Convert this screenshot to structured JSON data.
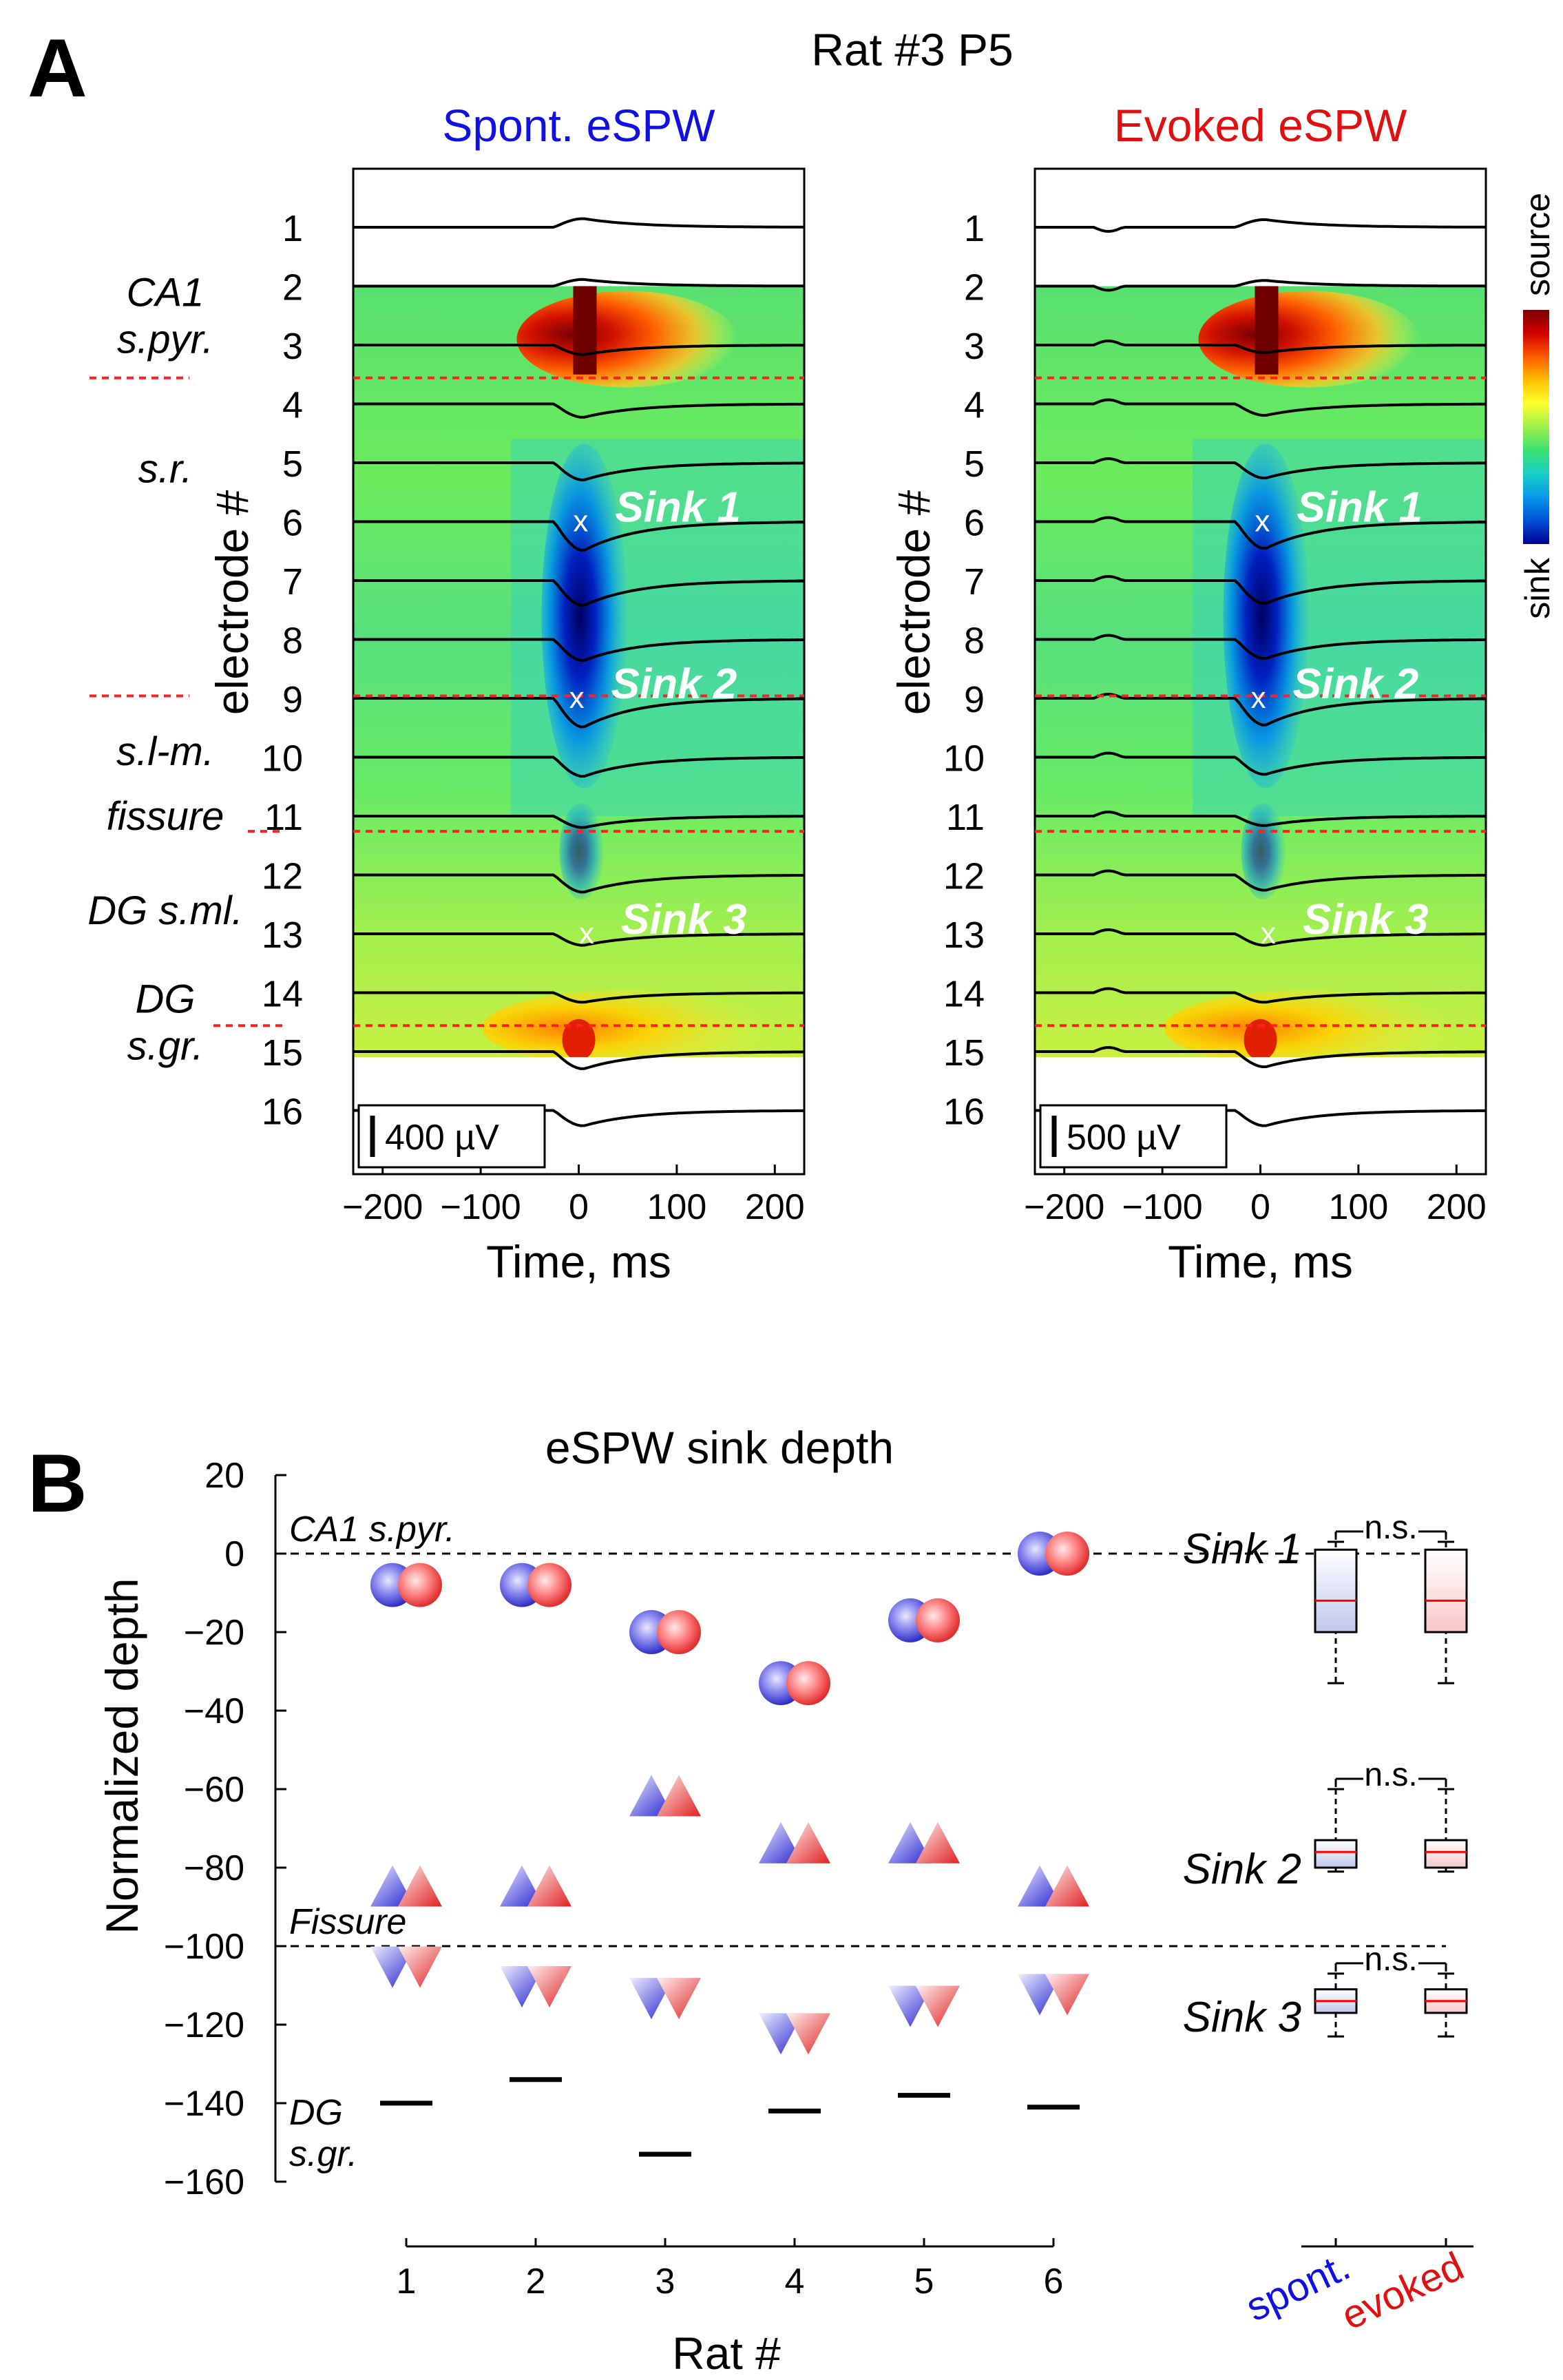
{
  "panel_a": {
    "letter": "A",
    "title": "Rat #3 P5",
    "time_label": "Time, ms",
    "y_label": "electrode #",
    "colorbar": {
      "top_label": "source",
      "bottom_label": "sink",
      "colors": [
        "#7a0000",
        "#d00000",
        "#ff5a00",
        "#ffc000",
        "#ffff30",
        "#9cf04c",
        "#3ce070",
        "#18d0c8",
        "#0898e8",
        "#0050d8",
        "#000090"
      ]
    },
    "layer_labels": [
      {
        "key": "ca1",
        "lines": [
          "CA1",
          "s.pyr."
        ],
        "electrode": 2.5
      },
      {
        "key": "sr",
        "lines": [
          "s.r."
        ],
        "electrode": 5.1
      },
      {
        "key": "slm",
        "lines": [
          "s.l-m."
        ],
        "electrode": 9.9
      },
      {
        "key": "fissure",
        "lines": [
          "fissure"
        ],
        "electrode": 11.0
      },
      {
        "key": "dgsml",
        "lines": [
          "DG s.ml."
        ],
        "electrode": 12.6
      },
      {
        "key": "dgsgr",
        "lines": [
          "DG",
          "s.gr."
        ],
        "electrode": 14.5
      }
    ],
    "boundaries": [
      3.5,
      8.9,
      11.2,
      14.5
    ],
    "electrodes": [
      "1",
      "2",
      "3",
      "4",
      "5",
      "6",
      "7",
      "8",
      "9",
      "10",
      "11",
      "12",
      "13",
      "14",
      "15",
      "16"
    ],
    "xticks": [
      -200,
      -100,
      0,
      100,
      200
    ],
    "xtick_labels": [
      "−200",
      "−100",
      "0",
      "100",
      "200"
    ],
    "xlim": [
      -230,
      230
    ],
    "sinks": [
      {
        "label": "Sink 1",
        "electrode": 6
      },
      {
        "label": "Sink 2",
        "electrode": 9
      },
      {
        "label": "Sink 3",
        "electrode": 13
      }
    ],
    "plots": [
      {
        "key": "spont",
        "title": "Spont. eSPW",
        "title_color": "#1010e0",
        "scale": "400 µV",
        "sink_times": [
          2,
          -2,
          8
        ],
        "amplitudes": [
          0.45,
          0.35,
          -0.5,
          -0.7,
          -0.9,
          -1.5,
          -1.3,
          -1.1,
          -1.5,
          -1.0,
          -0.6,
          -0.9,
          -0.6,
          -0.5,
          -0.9,
          -0.8
        ]
      },
      {
        "key": "evoked",
        "title": "Evoked eSPW",
        "title_color": "#e01010",
        "scale": "500 µV",
        "sink_times": [
          2,
          -2,
          8
        ],
        "amplitudes": [
          0.4,
          0.3,
          -0.4,
          -0.6,
          -0.8,
          -1.4,
          -1.2,
          -1.0,
          -1.4,
          -0.9,
          -0.5,
          -0.8,
          -0.6,
          -0.5,
          -0.8,
          -0.8
        ]
      }
    ]
  },
  "panel_b": {
    "letter": "B",
    "title": "eSPW sink depth",
    "ylabel": "Normalized depth",
    "xlabel": "Rat #",
    "ylim": [
      -160,
      20
    ],
    "yticks": [
      20,
      0,
      -20,
      -40,
      -60,
      -80,
      -100,
      -120,
      -140,
      -160
    ],
    "ytick_labels": [
      "20",
      "0",
      "−20",
      "−40",
      "−60",
      "−80",
      "−100",
      "−120",
      "−140",
      "−160"
    ],
    "rats": [
      "1",
      "2",
      "3",
      "4",
      "5",
      "6"
    ],
    "ref_lines": [
      {
        "label": "CA1 s.pyr.",
        "value": 0
      },
      {
        "label": "Fissure",
        "value": -100
      }
    ],
    "dg_label": [
      "DG",
      "s.gr."
    ],
    "sink1": [
      -8,
      -8,
      -20,
      -33,
      -17,
      0
    ],
    "sink2": [
      -85,
      -85,
      -62,
      -74,
      -74,
      -85
    ],
    "sink3": [
      -105,
      -110,
      -113,
      -122,
      -115,
      -112
    ],
    "dg_sgr": [
      -140,
      -134,
      -153,
      -142,
      -138,
      -141
    ],
    "sink_labels": [
      "Sink 1",
      "Sink 2",
      "Sink 3"
    ],
    "ns_label": "n.s.",
    "group_labels": {
      "spont": "spont.",
      "evoked": "evoked"
    },
    "group_colors": {
      "spont": "#1010e0",
      "evoked": "#e01010"
    },
    "boxes": {
      "sink1": {
        "spont": {
          "whislo": -33,
          "q1": -20,
          "med": -12,
          "q3": 1,
          "whishi": 3
        },
        "evoked": {
          "whislo": -33,
          "q1": -20,
          "med": -12,
          "q3": 1,
          "whishi": 3
        }
      },
      "sink2": {
        "spont": {
          "whislo": -81,
          "q1": -80,
          "med": -76,
          "q3": -73,
          "whishi": -60
        },
        "evoked": {
          "whislo": -81,
          "q1": -80,
          "med": -76,
          "q3": -73,
          "whishi": -60
        }
      },
      "sink3": {
        "spont": {
          "whislo": -123,
          "q1": -117,
          "med": -114,
          "q3": -111,
          "whishi": -107
        },
        "evoked": {
          "whislo": -123,
          "q1": -117,
          "med": -114,
          "q3": -111,
          "whishi": -107
        }
      }
    }
  },
  "chart_data": [
    {
      "type": "heatmap",
      "title": "Spont. eSPW",
      "xlabel": "Time, ms",
      "ylabel": "electrode #",
      "xlim": [
        -230,
        230
      ],
      "electrodes": [
        1,
        16
      ],
      "sinks": [
        {
          "name": "Sink 1",
          "electrode": 6,
          "time_ms": 2
        },
        {
          "name": "Sink 2",
          "electrode": 9,
          "time_ms": -2
        },
        {
          "name": "Sink 3",
          "electrode": 13,
          "time_ms": 8
        }
      ],
      "scale_bar": "400 µV"
    },
    {
      "type": "heatmap",
      "title": "Evoked eSPW",
      "xlabel": "Time, ms",
      "ylabel": "electrode #",
      "xlim": [
        -230,
        230
      ],
      "electrodes": [
        1,
        16
      ],
      "sinks": [
        {
          "name": "Sink 1",
          "electrode": 6,
          "time_ms": 2
        },
        {
          "name": "Sink 2",
          "electrode": 9,
          "time_ms": -2
        },
        {
          "name": "Sink 3",
          "electrode": 13,
          "time_ms": 8
        }
      ],
      "scale_bar": "500 µV"
    },
    {
      "type": "scatter",
      "title": "eSPW sink depth",
      "xlabel": "Rat #",
      "ylabel": "Normalized depth",
      "ylim": [
        -160,
        20
      ],
      "categories": [
        "1",
        "2",
        "3",
        "4",
        "5",
        "6"
      ],
      "series": [
        {
          "name": "Sink 1",
          "values": [
            -8,
            -8,
            -20,
            -33,
            -17,
            0
          ]
        },
        {
          "name": "Sink 2",
          "values": [
            -85,
            -85,
            -62,
            -74,
            -74,
            -85
          ]
        },
        {
          "name": "Sink 3",
          "values": [
            -105,
            -110,
            -113,
            -122,
            -115,
            -112
          ]
        },
        {
          "name": "DG s.gr.",
          "values": [
            -140,
            -134,
            -153,
            -142,
            -138,
            -141
          ]
        }
      ]
    }
  ]
}
